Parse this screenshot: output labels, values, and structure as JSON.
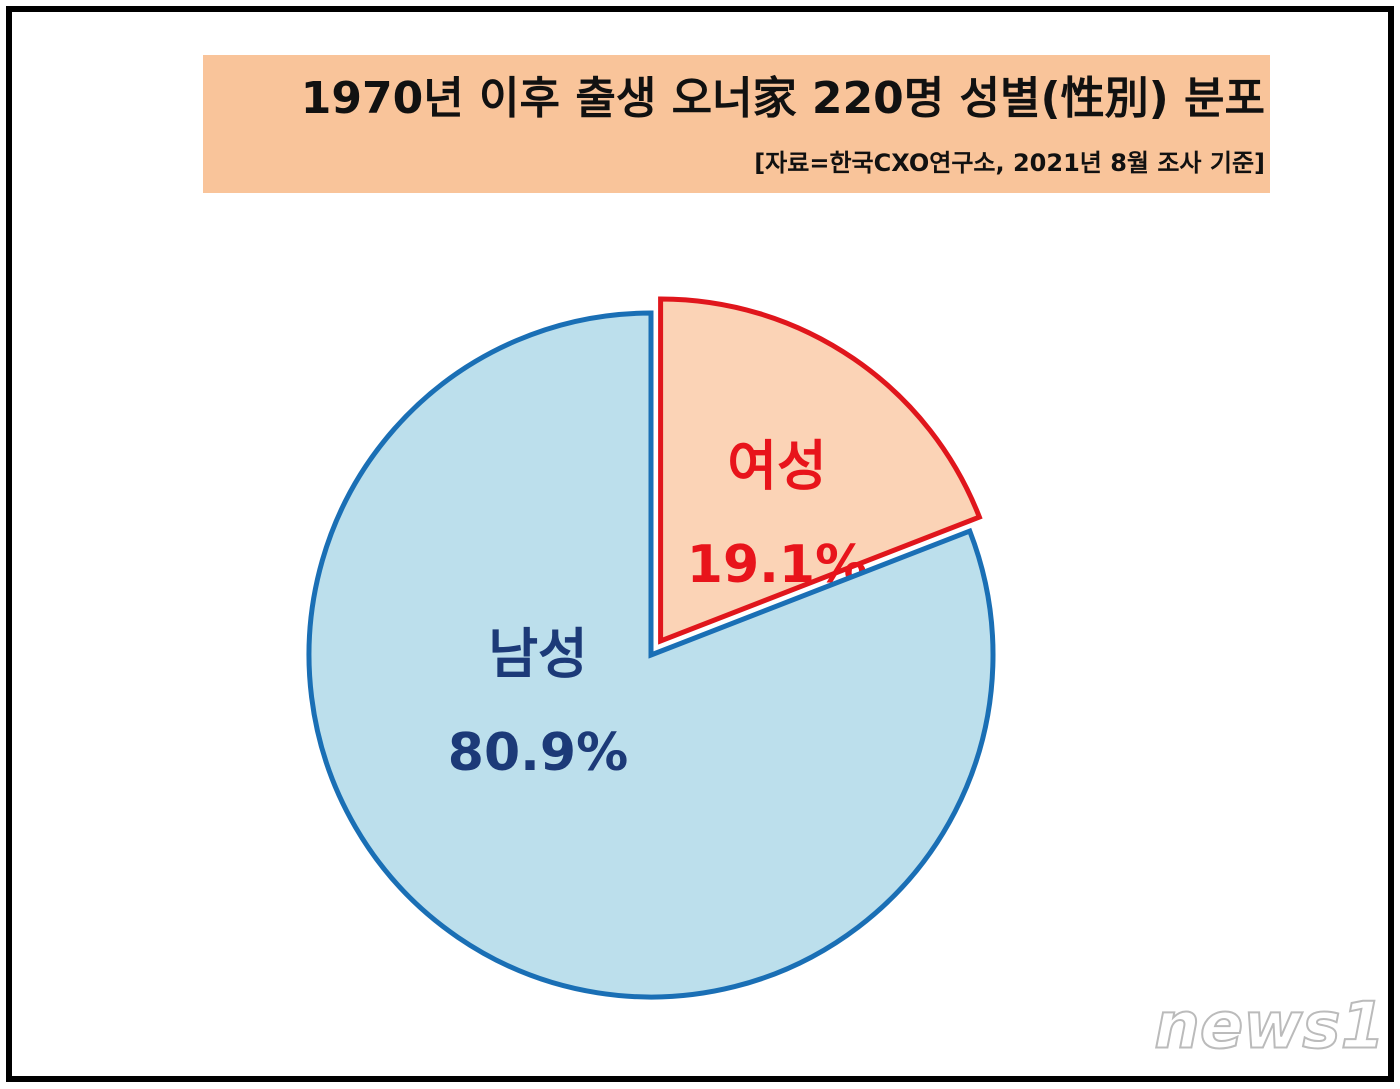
{
  "chart_data": {
    "type": "pie",
    "title": "1970년 이후 출생 오너家 220명 성별(性別) 분포",
    "subtitle": "[자료=한국CXO연구소, 2021년 8월 조사 기준]",
    "categories": [
      "여성",
      "남성"
    ],
    "values": [
      19.1,
      80.9
    ],
    "value_labels": [
      "19.1%",
      "80.9%"
    ],
    "colors": [
      "#fbd3b6",
      "#bcdfec"
    ],
    "edge_colors": [
      "#e0161c",
      "#1a6fb5"
    ],
    "label_colors": [
      "#e8141b",
      "#1c3a78"
    ],
    "watermark": "news1"
  }
}
